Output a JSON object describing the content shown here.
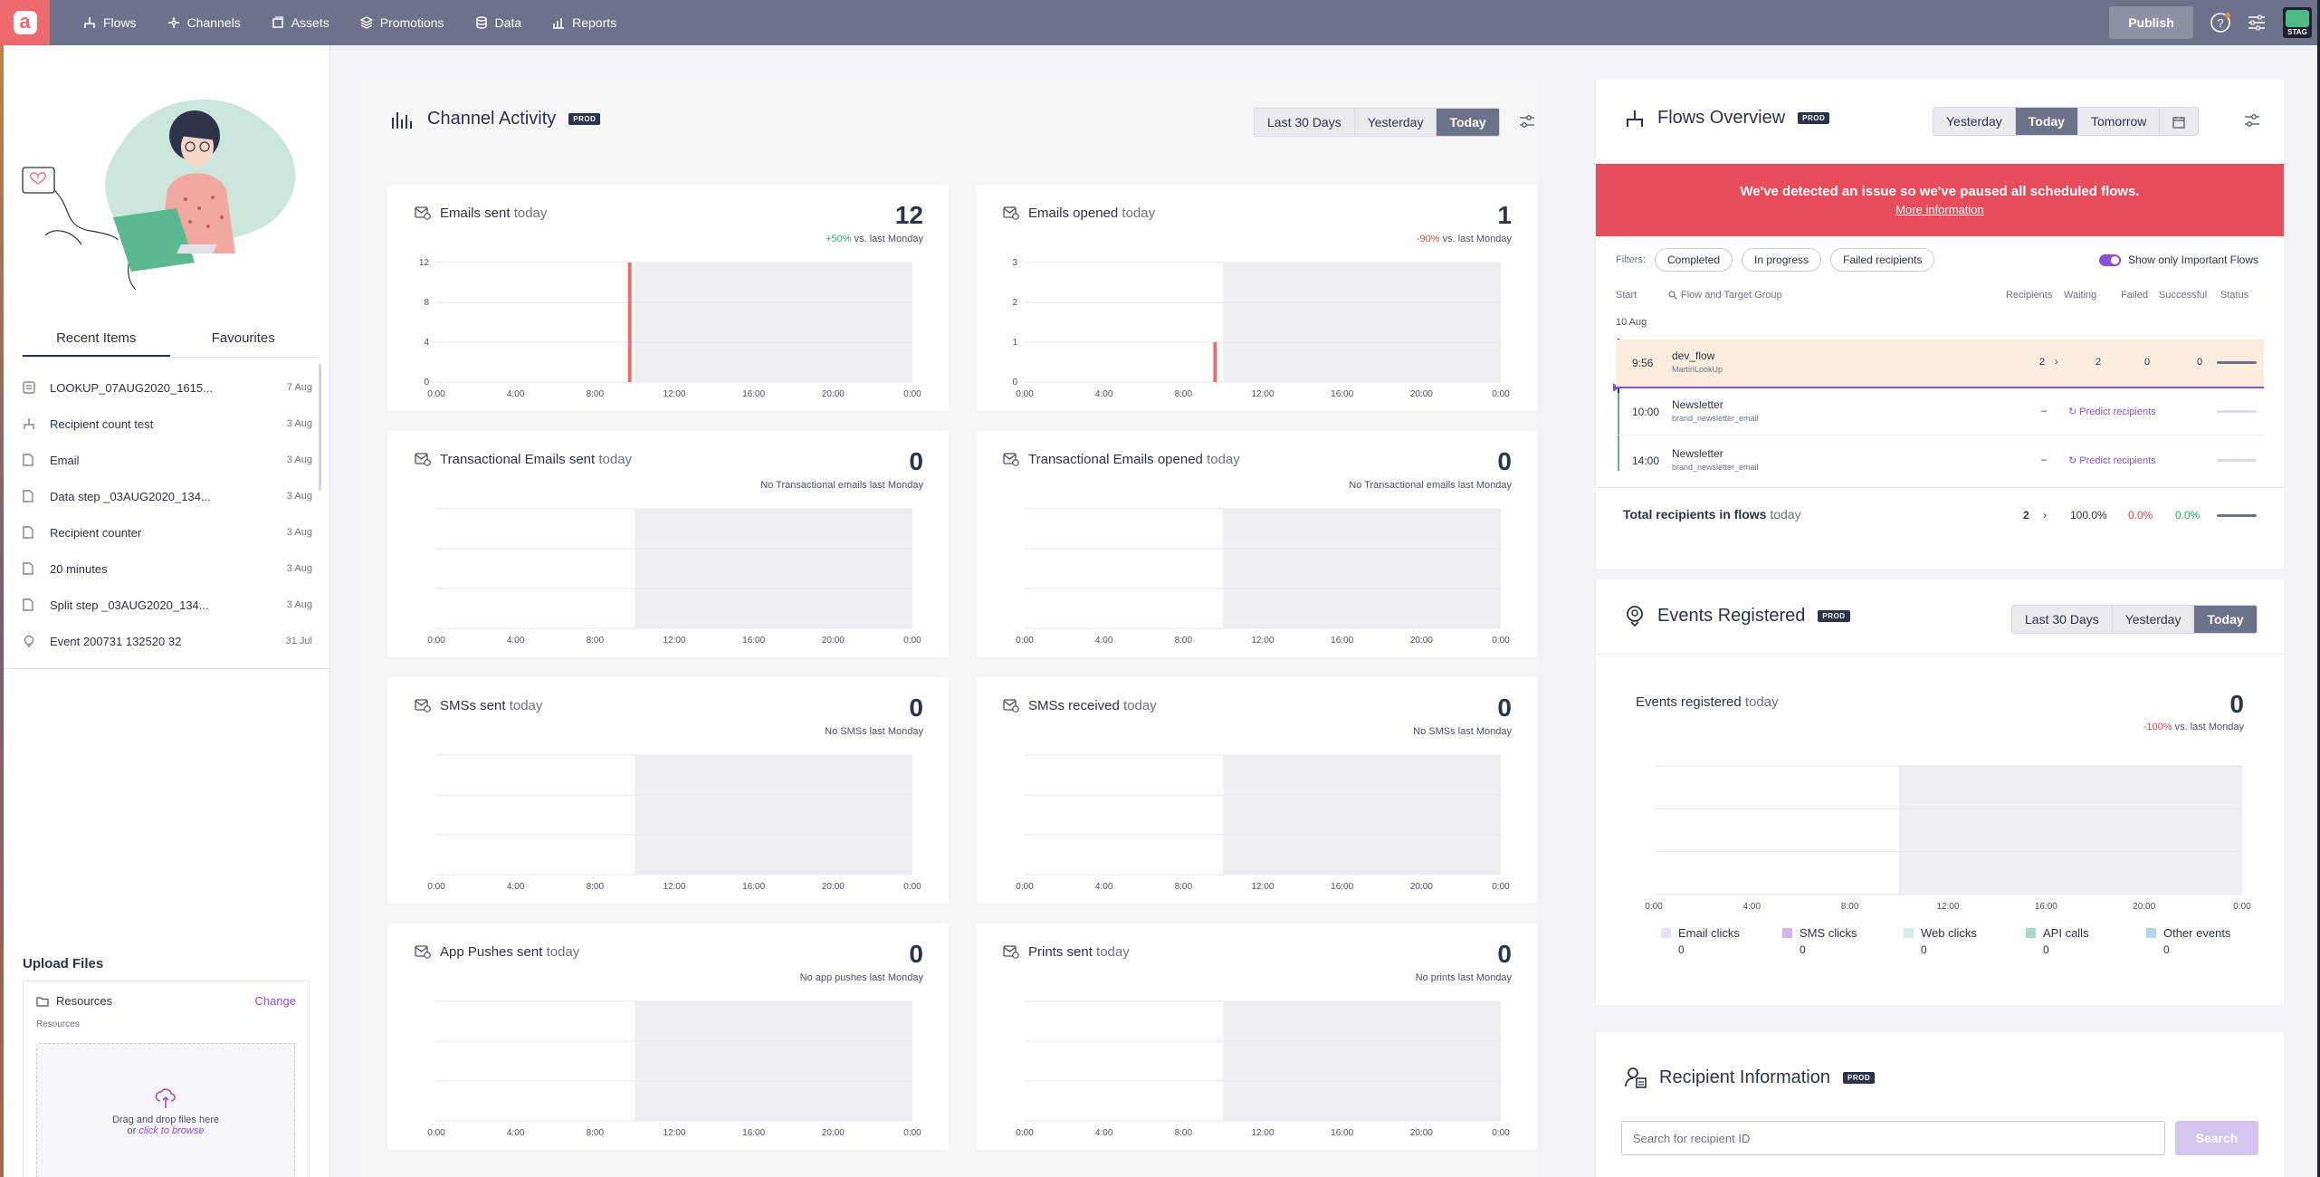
{
  "nav": {
    "logo_letter": "a",
    "items": [
      {
        "label": "Flows",
        "icon": "flows-icon"
      },
      {
        "label": "Channels",
        "icon": "channels-icon"
      },
      {
        "label": "Assets",
        "icon": "assets-icon"
      },
      {
        "label": "Promotions",
        "icon": "promotions-icon"
      },
      {
        "label": "Data",
        "icon": "data-icon"
      },
      {
        "label": "Reports",
        "icon": "reports-icon"
      }
    ],
    "publish_label": "Publish",
    "env_label": "STAG"
  },
  "sidebar": {
    "tabs": [
      "Recent Items",
      "Favourites"
    ],
    "active_tab": "Recent Items",
    "recent_items": [
      {
        "name": "LOOKUP_07AUG2020_1615...",
        "date": "7 Aug",
        "icon": "lookup-icon"
      },
      {
        "name": "Recipient count test",
        "date": "3 Aug",
        "icon": "flow-icon"
      },
      {
        "name": "Email",
        "date": "3 Aug",
        "icon": "document-icon"
      },
      {
        "name": "Data step _03AUG2020_134...",
        "date": "3 Aug",
        "icon": "document-icon"
      },
      {
        "name": "Recipient counter",
        "date": "3 Aug",
        "icon": "document-icon"
      },
      {
        "name": "20 minutes",
        "date": "3 Aug",
        "icon": "document-icon"
      },
      {
        "name": "Split step _03AUG2020_134...",
        "date": "3 Aug",
        "icon": "document-icon"
      },
      {
        "name": "Event 200731 132520 32",
        "date": "31 Jul",
        "icon": "event-icon"
      }
    ],
    "upload": {
      "title": "Upload Files",
      "folder": "Resources",
      "change_label": "Change",
      "sub_label": "Resources",
      "drop_text": "Drag and drop files here",
      "or_text": "or",
      "browse_text": "click to browse"
    }
  },
  "channel_activity": {
    "title": "Channel Activity",
    "badge": "PROD",
    "ranges": [
      "Last 30 Days",
      "Yesterday",
      "Today"
    ],
    "active_range": "Today",
    "x_ticks": [
      "0:00",
      "4:00",
      "8:00",
      "12:00",
      "16:00",
      "20:00",
      "0:00"
    ],
    "cards": [
      {
        "title": "Emails sent",
        "suffix": "today",
        "value": "12",
        "delta": "+50%",
        "delta_type": "pos",
        "compare": "vs. last Monday",
        "icon": "email-sent-icon",
        "y_ticks": [
          "12",
          "8",
          "4",
          "0"
        ],
        "y_max": 12,
        "bars": [
          {
            "hour": 9.75,
            "value": 12
          }
        ]
      },
      {
        "title": "Emails opened",
        "suffix": "today",
        "value": "1",
        "delta": "-90%",
        "delta_type": "neg",
        "compare": "vs. last Monday",
        "icon": "email-opened-icon",
        "y_ticks": [
          "3",
          "2",
          "1",
          "0"
        ],
        "y_max": 3,
        "bars": [
          {
            "hour": 9.6,
            "value": 1
          }
        ]
      },
      {
        "title": "Transactional Emails sent",
        "suffix": "today",
        "value": "0",
        "delta": "",
        "delta_type": "",
        "compare": "No Transactional emails last Monday",
        "icon": "email-sent-icon",
        "y_ticks": [],
        "bars": []
      },
      {
        "title": "Transactional Emails opened",
        "suffix": "today",
        "value": "0",
        "delta": "",
        "delta_type": "",
        "compare": "No Transactional emails last Monday",
        "icon": "email-opened-icon",
        "y_ticks": [],
        "bars": []
      },
      {
        "title": "SMSs sent",
        "suffix": "today",
        "value": "0",
        "delta": "",
        "delta_type": "",
        "compare": "No SMSs last Monday",
        "icon": "sms-sent-icon",
        "y_ticks": [],
        "bars": []
      },
      {
        "title": "SMSs received",
        "suffix": "today",
        "value": "0",
        "delta": "",
        "delta_type": "",
        "compare": "No SMSs last Monday",
        "icon": "sms-received-icon",
        "y_ticks": [],
        "bars": []
      },
      {
        "title": "App Pushes sent",
        "suffix": "today",
        "value": "0",
        "delta": "",
        "delta_type": "",
        "compare": "No app pushes last Monday",
        "icon": "app-push-icon",
        "y_ticks": [],
        "bars": []
      },
      {
        "title": "Prints sent",
        "suffix": "today",
        "value": "0",
        "delta": "",
        "delta_type": "",
        "compare": "No prints last Monday",
        "icon": "print-icon",
        "y_ticks": [],
        "bars": []
      }
    ]
  },
  "flows_overview": {
    "title": "Flows Overview",
    "badge": "PROD",
    "ranges": [
      "Yesterday",
      "Today",
      "Tomorrow"
    ],
    "active_range": "Today",
    "alert_text": "We've detected an issue so we've paused all scheduled flows.",
    "alert_link": "More information",
    "filters_label": "Filters:",
    "filters": [
      "Completed",
      "In progress",
      "Failed recipients"
    ],
    "important_label": "Show only Important Flows",
    "headers": {
      "start": "Start",
      "flow": "Flow and Target Group",
      "recipients": "Recipients",
      "waiting": "Waiting",
      "failed": "Failed",
      "successful": "Successful",
      "status": "Status"
    },
    "date_label": "10 Aug",
    "rows": [
      {
        "time": "9:56",
        "name": "dev_flow",
        "target": "MartinLookUp",
        "recipients": "2",
        "waiting": "2",
        "failed": "0",
        "successful": "0",
        "predict": ""
      },
      {
        "time": "10:00",
        "name": "Newsletter",
        "target": "brand_newsletter_email",
        "recipients": "–",
        "waiting": "",
        "failed": "",
        "successful": "",
        "predict": "Predict recipients"
      },
      {
        "time": "14:00",
        "name": "Newsletter",
        "target": "brand_newsletter_email",
        "recipients": "–",
        "waiting": "",
        "failed": "",
        "successful": "",
        "predict": "Predict recipients"
      }
    ],
    "total_label": "Total recipients in flows",
    "total_suffix": "today",
    "total_recipients": "2",
    "total_waiting": "100.0%",
    "total_failed": "0.0%",
    "total_successful": "0.0%"
  },
  "events_registered": {
    "title": "Events Registered",
    "badge": "PROD",
    "ranges": [
      "Last 30 Days",
      "Yesterday",
      "Today"
    ],
    "active_range": "Today",
    "card_title": "Events registered",
    "card_suffix": "today",
    "value": "0",
    "delta": "-100%",
    "compare": "vs. last Monday",
    "x_ticks": [
      "0:00",
      "4:00",
      "8:00",
      "12:00",
      "16:00",
      "20:00",
      "0:00"
    ],
    "legend": [
      {
        "label": "Email clicks",
        "count": "0",
        "color": "#e8e0f5"
      },
      {
        "label": "SMS clicks",
        "count": "0",
        "color": "#d6b4f0"
      },
      {
        "label": "Web clicks",
        "count": "0",
        "color": "#d5ece2"
      },
      {
        "label": "API calls",
        "count": "0",
        "color": "#a6dcc3"
      },
      {
        "label": "Other events",
        "count": "0",
        "color": "#b6d4ee"
      }
    ]
  },
  "recipient_information": {
    "title": "Recipient Information",
    "badge": "PROD",
    "search_placeholder": "Search for recipient ID",
    "search_label": "Search"
  },
  "colors": {
    "accent": "#8c4fd8",
    "topbar": "#6c7289",
    "alert": "#e74c5b",
    "bar": "#ef6a6c"
  }
}
